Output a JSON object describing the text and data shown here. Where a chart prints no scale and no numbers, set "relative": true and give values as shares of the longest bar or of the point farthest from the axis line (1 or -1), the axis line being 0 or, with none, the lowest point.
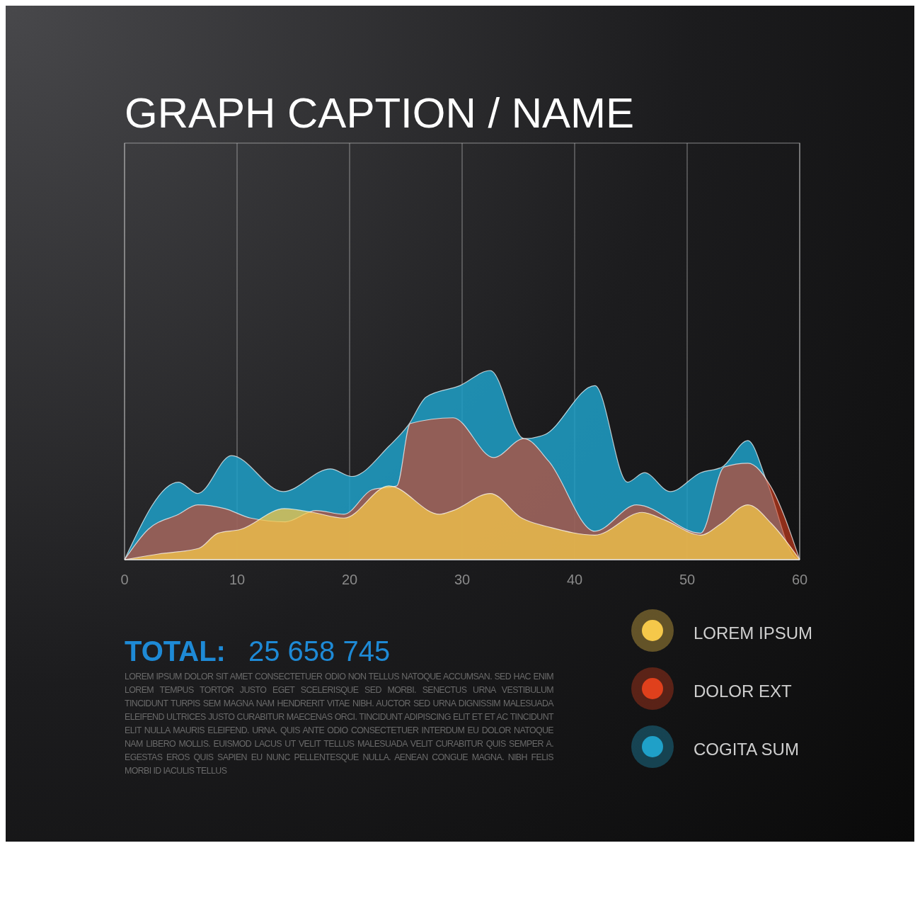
{
  "chart_data": {
    "type": "area",
    "title": "GRAPH CAPTION / NAME",
    "relative": true,
    "xlim": [
      0,
      60
    ],
    "xticks": [
      0,
      10,
      20,
      30,
      40,
      50,
      60
    ],
    "grid": "x",
    "legend": "bottom right",
    "series": [
      {
        "name": "COGITA SUM",
        "color": "#1fa0c8",
        "x": [
          0,
          4.8,
          6.5,
          9.5,
          14.1,
          18.3,
          20.2,
          23.5,
          25.2,
          26.8,
          29.8,
          32.5,
          35.5,
          37.3,
          41.8,
          44.7,
          46.2,
          48.5,
          51.2,
          53.1,
          55.4,
          57.1,
          59.6,
          60
        ],
        "values": [
          0,
          0.41,
          0.35,
          0.55,
          0.36,
          0.48,
          0.44,
          0.6,
          0.71,
          0.86,
          0.92,
          1,
          0.64,
          0.66,
          0.92,
          0.41,
          0.46,
          0.36,
          0.46,
          0.49,
          0.63,
          0.41,
          0.01,
          0
        ]
      },
      {
        "name": "DOLOR EXT",
        "color": "#e0401c",
        "x": [
          0,
          2.1,
          4.8,
          6.5,
          8.9,
          11.2,
          14.3,
          17,
          19.5,
          22,
          24.2,
          25.4,
          29.2,
          32.8,
          35.5,
          37.7,
          41.8,
          45.5,
          51.2,
          53.3,
          55.4,
          57.4,
          60
        ],
        "values": [
          0,
          0.16,
          0.24,
          0.29,
          0.27,
          0.22,
          0.2,
          0.26,
          0.24,
          0.37,
          0.39,
          0.72,
          0.75,
          0.54,
          0.64,
          0.52,
          0.15,
          0.29,
          0.14,
          0.49,
          0.51,
          0.39,
          0
        ]
      },
      {
        "name": "LOREM IPSUM",
        "color": "#f5c84a",
        "x": [
          0,
          3,
          6.6,
          8.3,
          10.3,
          14.2,
          16.7,
          19.5,
          23.5,
          28,
          29.2,
          32.5,
          35.3,
          37.9,
          41.8,
          46,
          48,
          51.2,
          53,
          55.4,
          57.5,
          60
        ],
        "values": [
          0,
          0.03,
          0.06,
          0.14,
          0.16,
          0.27,
          0.25,
          0.22,
          0.39,
          0.24,
          0.26,
          0.35,
          0.22,
          0.17,
          0.13,
          0.25,
          0.21,
          0.13,
          0.19,
          0.29,
          0.19,
          0
        ]
      }
    ],
    "annotations": [
      "TOTAL:",
      "25 658 745",
      "LOREM IPSUM DOLOR SIT AMET CONSECTETUER ODIO NON TELLUS NATOQUE ACCUMSAN. SED HAC ENIM LOREM TEMPUS TORTOR JUSTO EGET SCELERISQUE SED MORBI. SENECTUS URNA VESTIBULUM TINCIDUNT TURPIS SEM MAGNA NAM HENDRERIT VITAE NIBH. AUCTOR SED URNA DIGNISSIM MALESUADA ELEIFEND ULTRICES JUSTO CURABITUR MAECENAS ORCI. TINCIDUNT ADIPISCING ELIT ET ET AC TINCIDUNT ELIT NULLA MAURIS ELEIFEND. URNA. QUIS ANTE ODIO CONSECTETUER INTERDUM EU DOLOR NATOQUE NAM LIBERO MOLLIS. EUISMOD LACUS UT VELIT TELLUS MALESUADA VELIT CURABITUR QUIS SEMPER A. EGESTAS EROS QUIS SAPIEN EU NUNC PELLENTESQUE NULLA. AENEAN CONGUE MAGNA. NIBH FELIS MORBI ID IACULIS TELLUS"
    ]
  }
}
